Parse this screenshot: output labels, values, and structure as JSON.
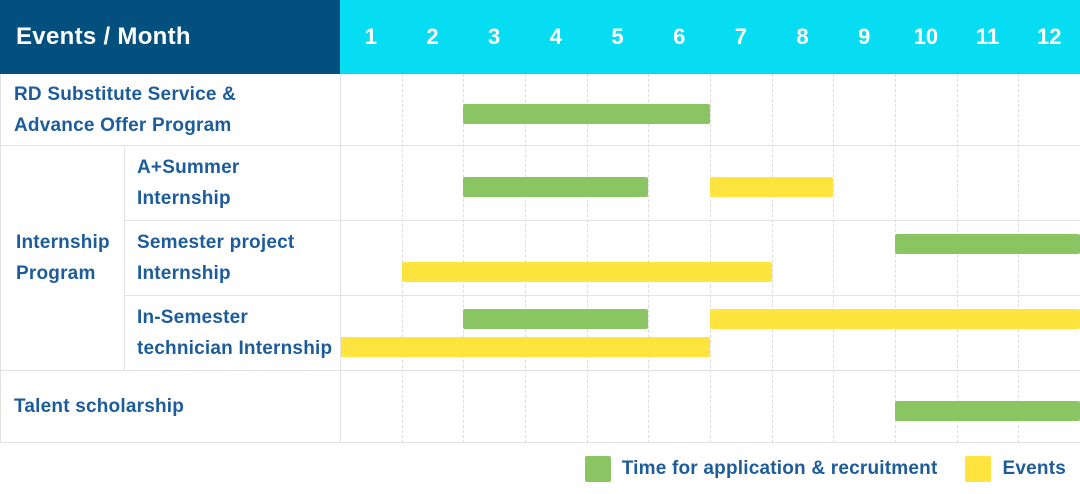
{
  "header": {
    "title": "Events / Month"
  },
  "colors": {
    "navy": "#03507e",
    "cyan": "#06dcf2",
    "green": "#8bc563",
    "yellow": "#ffe33e",
    "label_text": "#1d5c9b",
    "grid_solid": "#e2e2e2",
    "grid_dashed": "#dcdcdc"
  },
  "chart_data": {
    "type": "bar",
    "subtype": "gantt-timeline",
    "title": "Events / Month",
    "x_ticks": [
      "1",
      "2",
      "3",
      "4",
      "5",
      "6",
      "7",
      "8",
      "9",
      "10",
      "11",
      "12"
    ],
    "x_range": [
      1,
      12
    ],
    "grid": "dashed-vertical-month-lines",
    "legend_position": "bottom-right",
    "rows": [
      {
        "group": null,
        "label": "RD Substitute Service &\nAdvance Offer Program",
        "bars": [
          {
            "type": "application",
            "start_month": 3,
            "end_month": 6,
            "line": 0
          }
        ]
      },
      {
        "group": "Internship\nProgram",
        "label": "A+Summer\nInternship",
        "bars": [
          {
            "type": "application",
            "start_month": 3,
            "end_month": 5,
            "line": 0
          },
          {
            "type": "event",
            "start_month": 7,
            "end_month": 8,
            "line": 0
          }
        ]
      },
      {
        "group": "Internship\nProgram",
        "label": "Semester project\nInternship",
        "bars": [
          {
            "type": "application",
            "start_month": 10,
            "end_month": 12,
            "line": 0
          },
          {
            "type": "event",
            "start_month": 2,
            "end_month": 7,
            "line": 1
          }
        ]
      },
      {
        "group": "Internship\nProgram",
        "label": "In-Semester\ntechnician Internship",
        "bars": [
          {
            "type": "application",
            "start_month": 3,
            "end_month": 5,
            "line": 0
          },
          {
            "type": "event",
            "start_month": 7,
            "end_month": 12,
            "line": 0
          },
          {
            "type": "event",
            "start_month": 1,
            "end_month": 6,
            "line": 1
          }
        ]
      },
      {
        "group": null,
        "label": "Talent scholarship",
        "bars": [
          {
            "type": "application",
            "start_month": 10,
            "end_month": 12,
            "line": 0
          }
        ]
      }
    ],
    "legend": [
      {
        "type": "application",
        "label": "Time for application & recruitment"
      },
      {
        "type": "event",
        "label": "Events"
      }
    ]
  }
}
